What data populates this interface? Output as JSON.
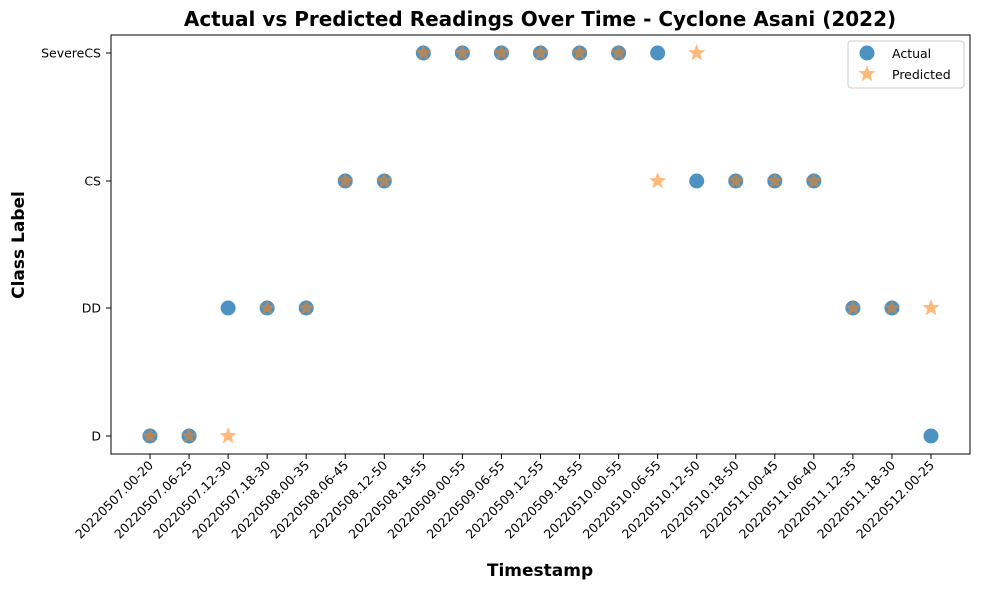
{
  "chart_data": {
    "type": "scatter",
    "title": "Actual vs Predicted Readings Over Time - Cyclone Asani (2022)",
    "xlabel": "Timestamp",
    "ylabel": "Class Label",
    "categories": [
      "20220507.00-20",
      "20220507.06-25",
      "20220507.12-30",
      "20220507.18-30",
      "20220508.00-35",
      "20220508.06-45",
      "20220508.12-50",
      "20220508.18-55",
      "20220509.00-55",
      "20220509.06-55",
      "20220509.12-55",
      "20220509.18-55",
      "20220510.00-55",
      "20220510.06-55",
      "20220510.12-50",
      "20220510.18-50",
      "20220511.00-45",
      "20220511.06-40",
      "20220511.12-35",
      "20220511.18-30",
      "20220512.00-25"
    ],
    "y_categories": [
      "D",
      "DD",
      "CS",
      "SevereCS"
    ],
    "series": [
      {
        "name": "Actual",
        "marker": "circle",
        "color": "#1f77b4",
        "values": [
          "D",
          "D",
          "DD",
          "DD",
          "DD",
          "CS",
          "CS",
          "SevereCS",
          "SevereCS",
          "SevereCS",
          "SevereCS",
          "SevereCS",
          "SevereCS",
          "SevereCS",
          "CS",
          "CS",
          "CS",
          "CS",
          "DD",
          "DD",
          "D"
        ]
      },
      {
        "name": "Predicted",
        "marker": "star",
        "color": "#ff7f0e",
        "values": [
          "D",
          "D",
          "D",
          "DD",
          "DD",
          "CS",
          "CS",
          "SevereCS",
          "SevereCS",
          "SevereCS",
          "SevereCS",
          "SevereCS",
          "SevereCS",
          "CS",
          "SevereCS",
          "CS",
          "CS",
          "CS",
          "DD",
          "DD",
          "DD"
        ]
      }
    ],
    "grid": false,
    "legend": "top-right"
  }
}
